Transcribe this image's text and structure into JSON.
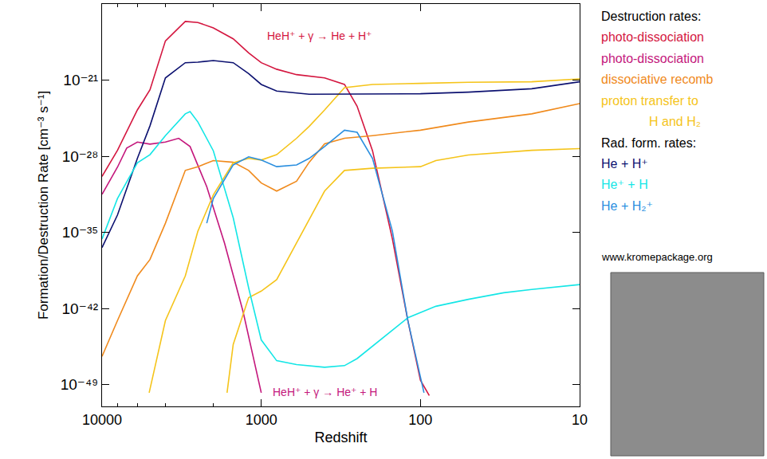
{
  "chart_data": {
    "type": "line",
    "x_label": "Redshift",
    "y_label": "Formation/Destruction Rate [cm⁻³ s⁻¹]",
    "log": true,
    "grid": false,
    "legend": "right",
    "xlim": [
      10000,
      10
    ],
    "ylim": [
      1e-51,
      1e-14
    ],
    "xticks": [
      10000,
      1000,
      100,
      10
    ],
    "yticks": [
      {
        "value": 1e-21,
        "label": "10⁻²¹"
      },
      {
        "value": 1e-28,
        "label": "10⁻²⁸"
      },
      {
        "value": 1e-35,
        "label": "10⁻³⁵"
      },
      {
        "value": 1e-42,
        "label": "10⁻⁴²"
      },
      {
        "value": 1e-49,
        "label": "10⁻⁴⁹"
      }
    ],
    "annotations": [
      {
        "text": "HeH⁺ + γ → He + H⁺",
        "color": "#d4163f"
      },
      {
        "text": "HeH⁺ + γ → He⁺ + H",
        "color": "#c4177c"
      }
    ],
    "source": "www.kromepackage.org",
    "series": [
      {
        "name": "photo-dissociation",
        "group": "Destruction rates:",
        "color": "#d4163f",
        "x": [
          10000,
          8000,
          6000,
          5000,
          4000,
          3000,
          2500,
          2000,
          1500,
          1200,
          1000,
          800,
          600,
          400,
          300,
          250,
          200,
          150,
          120,
          100,
          88
        ],
        "values": [
          1.4e-30,
          3.5e-28,
          1.8e-24,
          1.3e-22,
          4e-18,
          2.5e-16,
          2e-16,
          6.3e-17,
          6.3e-18,
          3.2e-19,
          4e-20,
          1e-20,
          3.2e-21,
          1.6e-21,
          4e-22,
          4e-24,
          3.2e-28,
          2.5e-36,
          7.9e-44,
          2.5e-49,
          1e-50
        ]
      },
      {
        "name": "photo-dissociation",
        "group": "Destruction rates:",
        "color": "#c4177c",
        "x": [
          10000,
          8000,
          7000,
          6000,
          5000,
          4000,
          3300,
          2800,
          2200,
          1700,
          1300,
          1000
        ],
        "values": [
          3.2e-32,
          1e-29,
          5.6e-28,
          2e-27,
          1.3e-27,
          2e-27,
          4.5e-27,
          7.9e-28,
          1.6e-31,
          1e-36,
          5e-43,
          1.8e-50
        ]
      },
      {
        "name": "dissociative recomb",
        "group": "Destruction rates:",
        "color": "#f08a1c",
        "x": [
          10000,
          8000,
          6000,
          5000,
          4000,
          3000,
          2500,
          2000,
          1500,
          1200,
          1000,
          800,
          600,
          500,
          400,
          300,
          200,
          100,
          50,
          20,
          10
        ],
        "values": [
          4e-47,
          7.9e-44,
          1e-39,
          3.2e-38,
          7e-35,
          5e-30,
          1.1e-29,
          4e-29,
          2.8e-29,
          5e-30,
          3.5e-31,
          6.3e-32,
          5e-31,
          2.8e-29,
          1.4e-27,
          4.5e-27,
          7.9e-27,
          2.5e-26,
          1.4e-25,
          7.9e-25,
          7e-24
        ]
      },
      {
        "name": "proton transfer to H and H₂",
        "group": "Destruction rates:",
        "color": "#f5c41a",
        "x": [
          5060,
          4000,
          3000,
          2500,
          2000,
          1500,
          1200,
          1000,
          800,
          600,
          500,
          400,
          300,
          200,
          100,
          50,
          20,
          10
        ],
        "values": [
          1.8e-50,
          7.9e-44,
          1e-39,
          1.3e-35,
          2.8e-32,
          2.5e-29,
          6.3e-29,
          4.5e-29,
          1.4e-28,
          4.5e-27,
          5.6e-26,
          1.8e-24,
          2e-22,
          4e-22,
          5e-22,
          6.3e-22,
          7e-22,
          1.3e-21
        ]
      },
      {
        "name": "proton transfer to H and H₂",
        "group": "Destruction rates:",
        "color": "#f5c41a",
        "x": [
          1640,
          1500,
          1200,
          1000,
          800,
          600,
          400,
          300,
          200,
          100,
          80,
          50,
          20,
          10
        ],
        "values": [
          1.8e-50,
          5e-46,
          1e-41,
          4e-41,
          4.5e-40,
          1e-36,
          6.3e-32,
          5e-30,
          7.9e-30,
          1.1e-29,
          4e-29,
          1.3e-28,
          3.5e-28,
          5e-28
        ]
      },
      {
        "name": "He + H⁺",
        "group": "Rad. form. rates:",
        "color": "#0c1170",
        "x": [
          10000,
          8000,
          6000,
          5000,
          4000,
          3000,
          2500,
          2000,
          1500,
          1200,
          1000,
          800,
          500,
          300,
          200,
          100,
          50,
          20,
          10
        ],
        "values": [
          4e-37,
          4e-34,
          6.3e-29,
          6.3e-26,
          1.6e-21,
          4e-20,
          4.5e-20,
          6.3e-20,
          4e-20,
          4e-21,
          4e-22,
          1e-22,
          5e-23,
          5e-23,
          5e-23,
          5.6e-23,
          7.9e-23,
          1.6e-22,
          7e-22
        ]
      },
      {
        "name": "He⁺ + H",
        "group": "Rad. form. rates:",
        "color": "#14e6e6",
        "x": [
          10000,
          8000,
          6000,
          5000,
          4000,
          3000,
          2800,
          2500,
          2000,
          1500,
          1200,
          1000,
          800,
          600,
          400,
          300,
          250,
          200,
          150,
          120,
          80,
          50,
          30,
          20,
          10
        ],
        "values": [
          2.5e-36,
          1.3e-32,
          2.5e-29,
          1.4e-28,
          7.9e-27,
          7.9e-25,
          1.3e-24,
          1.4e-25,
          3.2e-28,
          2.2e-34,
          7.9e-41,
          1.3e-45,
          1.6e-47,
          7e-48,
          4e-48,
          5.6e-48,
          2.5e-47,
          3.5e-46,
          1.1e-44,
          1.4e-43,
          1.6e-42,
          7e-42,
          2.8e-41,
          5.6e-41,
          1.6e-40
        ]
      },
      {
        "name": "He + H₂⁺",
        "group": "Rad. form. rates:",
        "color": "#2b8fdf",
        "x": [
          2200,
          2000,
          1500,
          1200,
          1000,
          800,
          600,
          500,
          400,
          300,
          250,
          200,
          150,
          120,
          100,
          95
        ],
        "values": [
          7e-35,
          1.3e-32,
          1.6e-29,
          8.9e-29,
          4.5e-29,
          1.1e-29,
          1.6e-29,
          6.3e-29,
          7.9e-28,
          2.5e-26,
          1.6e-26,
          6.3e-29,
          1.3e-35,
          7.9e-44,
          5e-49,
          1.8e-50
        ]
      }
    ]
  }
}
